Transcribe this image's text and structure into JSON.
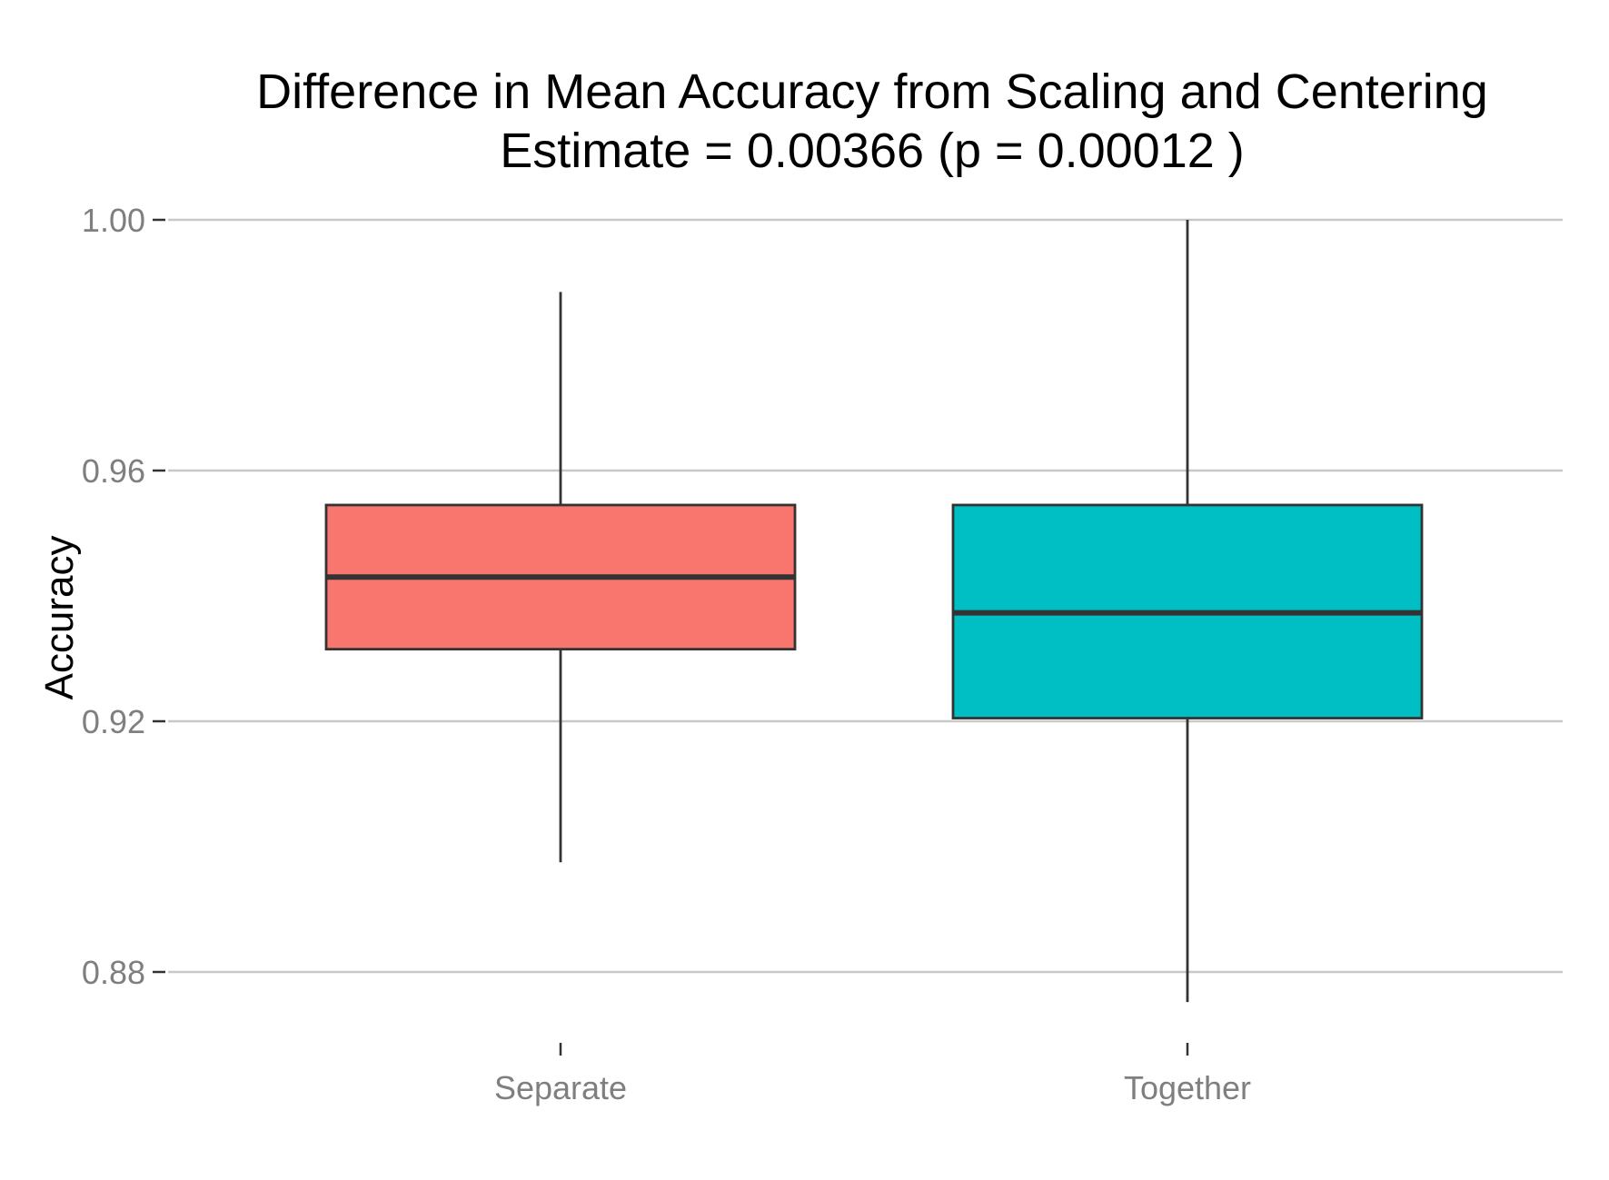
{
  "chart_data": {
    "type": "box",
    "title": "Difference in Mean Accuracy from Scaling and Centering",
    "subtitle": "Estimate = 0.00366 (p = 0.00012 )",
    "xlabel": "",
    "ylabel": "Accuracy",
    "ylim": [
      0.8752,
      1.0
    ],
    "y_ticks": [
      0.88,
      0.92,
      0.96,
      1.0
    ],
    "y_tick_labels": [
      "0.88",
      "0.92",
      "0.96",
      "1.00"
    ],
    "categories": [
      "Separate",
      "Together"
    ],
    "boxes": [
      {
        "category": "Separate",
        "whisker_low": 0.8975,
        "q1": 0.9315,
        "median": 0.943,
        "q3": 0.9545,
        "whisker_high": 0.9885,
        "fill": "#F8766D"
      },
      {
        "category": "Together",
        "whisker_low": 0.8752,
        "q1": 0.9205,
        "median": 0.9373,
        "q3": 0.9545,
        "whisker_high": 1.0,
        "fill": "#00BFC4"
      }
    ],
    "grid": "horizontal major",
    "legend": "none",
    "colors": {
      "grid": "#c8c8c8",
      "box_stroke": "#333333",
      "tick_text": "#7f7f7f"
    }
  }
}
